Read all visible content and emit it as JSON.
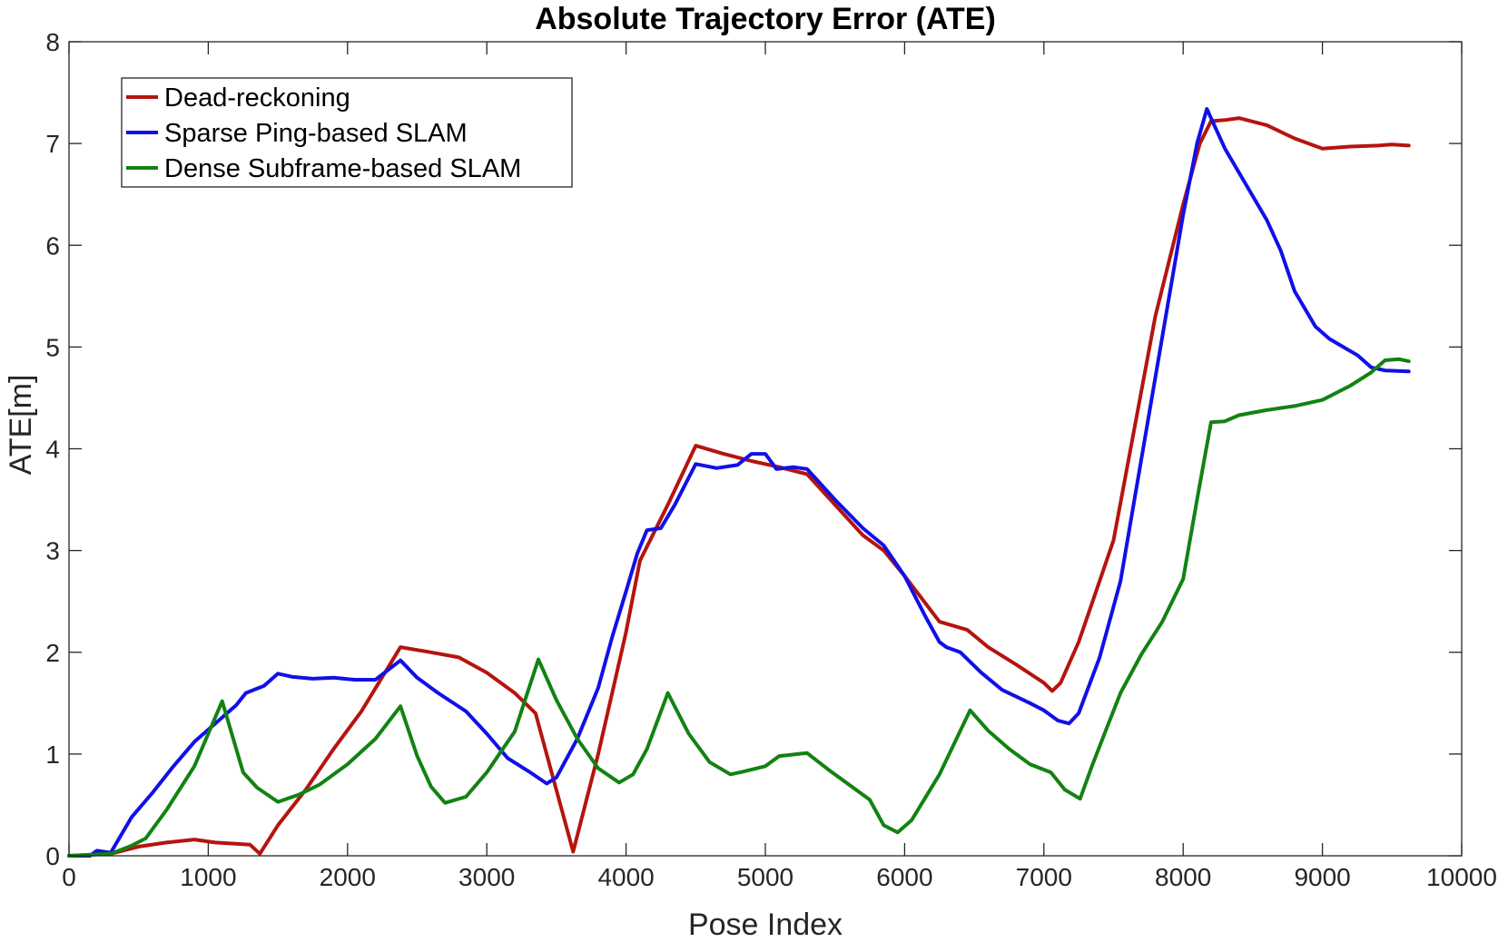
{
  "chart_data": {
    "type": "line",
    "title": "Absolute Trajectory Error (ATE)",
    "xlabel": "Pose Index",
    "ylabel": "ATE[m]",
    "xlim": [
      0,
      10000
    ],
    "ylim": [
      0,
      8
    ],
    "xticks": [
      0,
      1000,
      2000,
      3000,
      4000,
      5000,
      6000,
      7000,
      8000,
      9000,
      10000
    ],
    "yticks": [
      0,
      1,
      2,
      3,
      4,
      5,
      6,
      7,
      8
    ],
    "grid": false,
    "legend_position": "top-left",
    "series": [
      {
        "name": "Dead-reckoning",
        "color": "#b5140f",
        "points": [
          [
            0,
            0
          ],
          [
            300,
            0.02
          ],
          [
            500,
            0.09
          ],
          [
            700,
            0.13
          ],
          [
            900,
            0.16
          ],
          [
            1050,
            0.13
          ],
          [
            1300,
            0.11
          ],
          [
            1370,
            0.02
          ],
          [
            1500,
            0.3
          ],
          [
            1700,
            0.65
          ],
          [
            1900,
            1.05
          ],
          [
            2100,
            1.42
          ],
          [
            2380,
            2.05
          ],
          [
            2600,
            2.0
          ],
          [
            2800,
            1.95
          ],
          [
            3000,
            1.8
          ],
          [
            3200,
            1.6
          ],
          [
            3350,
            1.4
          ],
          [
            3620,
            0.04
          ],
          [
            3800,
            1.0
          ],
          [
            3900,
            1.6
          ],
          [
            4000,
            2.2
          ],
          [
            4100,
            2.9
          ],
          [
            4300,
            3.45
          ],
          [
            4500,
            4.03
          ],
          [
            4700,
            3.95
          ],
          [
            4900,
            3.88
          ],
          [
            5100,
            3.82
          ],
          [
            5300,
            3.75
          ],
          [
            5500,
            3.45
          ],
          [
            5700,
            3.15
          ],
          [
            5850,
            3.0
          ],
          [
            6000,
            2.75
          ],
          [
            6250,
            2.3
          ],
          [
            6450,
            2.22
          ],
          [
            6600,
            2.05
          ],
          [
            6800,
            1.88
          ],
          [
            7000,
            1.7
          ],
          [
            7060,
            1.62
          ],
          [
            7120,
            1.7
          ],
          [
            7250,
            2.1
          ],
          [
            7350,
            2.5
          ],
          [
            7500,
            3.1
          ],
          [
            7650,
            4.2
          ],
          [
            7800,
            5.3
          ],
          [
            8000,
            6.4
          ],
          [
            8120,
            7.0
          ],
          [
            8200,
            7.22
          ],
          [
            8300,
            7.23
          ],
          [
            8400,
            7.25
          ],
          [
            8600,
            7.18
          ],
          [
            8800,
            7.05
          ],
          [
            9000,
            6.95
          ],
          [
            9200,
            6.97
          ],
          [
            9400,
            6.98
          ],
          [
            9500,
            6.99
          ],
          [
            9620,
            6.98
          ]
        ]
      },
      {
        "name": "Sparse Ping-based SLAM",
        "color": "#1010e8",
        "points": [
          [
            0,
            0
          ],
          [
            150,
            0.0
          ],
          [
            200,
            0.05
          ],
          [
            300,
            0.03
          ],
          [
            450,
            0.38
          ],
          [
            600,
            0.62
          ],
          [
            750,
            0.88
          ],
          [
            900,
            1.12
          ],
          [
            1050,
            1.3
          ],
          [
            1200,
            1.48
          ],
          [
            1270,
            1.6
          ],
          [
            1400,
            1.67
          ],
          [
            1500,
            1.79
          ],
          [
            1600,
            1.76
          ],
          [
            1750,
            1.74
          ],
          [
            1900,
            1.75
          ],
          [
            2050,
            1.73
          ],
          [
            2200,
            1.73
          ],
          [
            2380,
            1.92
          ],
          [
            2500,
            1.75
          ],
          [
            2650,
            1.6
          ],
          [
            2850,
            1.42
          ],
          [
            3000,
            1.2
          ],
          [
            3150,
            0.96
          ],
          [
            3300,
            0.83
          ],
          [
            3430,
            0.71
          ],
          [
            3500,
            0.77
          ],
          [
            3650,
            1.15
          ],
          [
            3800,
            1.65
          ],
          [
            3900,
            2.15
          ],
          [
            4000,
            2.6
          ],
          [
            4080,
            2.97
          ],
          [
            4150,
            3.2
          ],
          [
            4250,
            3.22
          ],
          [
            4350,
            3.45
          ],
          [
            4500,
            3.85
          ],
          [
            4650,
            3.81
          ],
          [
            4800,
            3.84
          ],
          [
            4900,
            3.95
          ],
          [
            5000,
            3.95
          ],
          [
            5080,
            3.8
          ],
          [
            5200,
            3.82
          ],
          [
            5300,
            3.8
          ],
          [
            5500,
            3.5
          ],
          [
            5700,
            3.22
          ],
          [
            5850,
            3.05
          ],
          [
            6000,
            2.75
          ],
          [
            6150,
            2.35
          ],
          [
            6250,
            2.1
          ],
          [
            6300,
            2.05
          ],
          [
            6400,
            2.0
          ],
          [
            6550,
            1.8
          ],
          [
            6700,
            1.63
          ],
          [
            6900,
            1.5
          ],
          [
            7000,
            1.43
          ],
          [
            7100,
            1.33
          ],
          [
            7180,
            1.3
          ],
          [
            7250,
            1.4
          ],
          [
            7400,
            1.95
          ],
          [
            7550,
            2.7
          ],
          [
            7700,
            3.9
          ],
          [
            7850,
            5.1
          ],
          [
            8000,
            6.3
          ],
          [
            8100,
            7.0
          ],
          [
            8170,
            7.34
          ],
          [
            8300,
            6.95
          ],
          [
            8450,
            6.6
          ],
          [
            8600,
            6.25
          ],
          [
            8700,
            5.95
          ],
          [
            8800,
            5.55
          ],
          [
            8950,
            5.2
          ],
          [
            9050,
            5.08
          ],
          [
            9150,
            5.0
          ],
          [
            9250,
            4.92
          ],
          [
            9350,
            4.8
          ],
          [
            9450,
            4.77
          ],
          [
            9620,
            4.76
          ]
        ]
      },
      {
        "name": "Dense Subframe-based SLAM",
        "color": "#128212",
        "points": [
          [
            0,
            0
          ],
          [
            300,
            0.02
          ],
          [
            450,
            0.1
          ],
          [
            550,
            0.17
          ],
          [
            700,
            0.45
          ],
          [
            900,
            0.88
          ],
          [
            1100,
            1.52
          ],
          [
            1250,
            0.82
          ],
          [
            1350,
            0.67
          ],
          [
            1500,
            0.53
          ],
          [
            1650,
            0.6
          ],
          [
            1800,
            0.7
          ],
          [
            2000,
            0.9
          ],
          [
            2200,
            1.15
          ],
          [
            2380,
            1.47
          ],
          [
            2500,
            0.98
          ],
          [
            2600,
            0.68
          ],
          [
            2700,
            0.52
          ],
          [
            2850,
            0.58
          ],
          [
            3000,
            0.82
          ],
          [
            3100,
            1.02
          ],
          [
            3200,
            1.22
          ],
          [
            3370,
            1.93
          ],
          [
            3500,
            1.53
          ],
          [
            3650,
            1.15
          ],
          [
            3800,
            0.86
          ],
          [
            3950,
            0.72
          ],
          [
            4050,
            0.8
          ],
          [
            4150,
            1.05
          ],
          [
            4300,
            1.6
          ],
          [
            4450,
            1.2
          ],
          [
            4600,
            0.92
          ],
          [
            4750,
            0.8
          ],
          [
            4850,
            0.83
          ],
          [
            5000,
            0.88
          ],
          [
            5100,
            0.98
          ],
          [
            5300,
            1.01
          ],
          [
            5450,
            0.85
          ],
          [
            5600,
            0.7
          ],
          [
            5750,
            0.55
          ],
          [
            5850,
            0.3
          ],
          [
            5950,
            0.23
          ],
          [
            6050,
            0.35
          ],
          [
            6250,
            0.8
          ],
          [
            6470,
            1.43
          ],
          [
            6600,
            1.23
          ],
          [
            6750,
            1.05
          ],
          [
            6900,
            0.9
          ],
          [
            7050,
            0.82
          ],
          [
            7150,
            0.65
          ],
          [
            7260,
            0.56
          ],
          [
            7350,
            0.9
          ],
          [
            7450,
            1.25
          ],
          [
            7550,
            1.6
          ],
          [
            7700,
            1.98
          ],
          [
            7850,
            2.3
          ],
          [
            8000,
            2.72
          ],
          [
            8100,
            3.5
          ],
          [
            8200,
            4.26
          ],
          [
            8300,
            4.27
          ],
          [
            8400,
            4.33
          ],
          [
            8600,
            4.38
          ],
          [
            8800,
            4.42
          ],
          [
            9000,
            4.48
          ],
          [
            9200,
            4.62
          ],
          [
            9350,
            4.75
          ],
          [
            9450,
            4.87
          ],
          [
            9550,
            4.88
          ],
          [
            9620,
            4.86
          ]
        ]
      }
    ]
  }
}
